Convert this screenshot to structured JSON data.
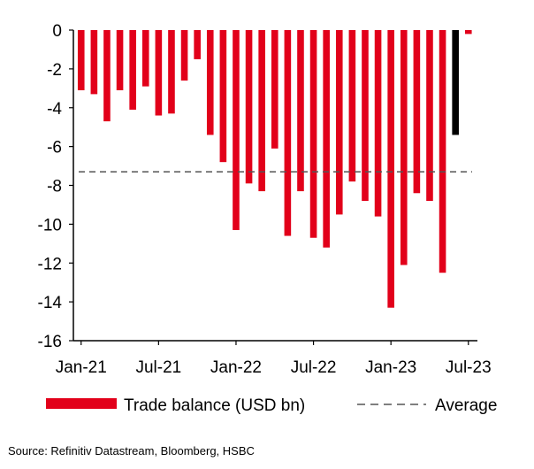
{
  "chart_data": {
    "type": "bar",
    "title": "",
    "xlabel": "",
    "ylabel": "",
    "ylim": [
      -16,
      0
    ],
    "yticks": [
      0,
      -2,
      -4,
      -6,
      -8,
      -10,
      -12,
      -14,
      -16
    ],
    "xtick_labels": [
      "Jan-21",
      "Jul-21",
      "Jan-22",
      "Jul-22",
      "Jan-23",
      "Jul-23"
    ],
    "categories": [
      "Jan-21",
      "Feb-21",
      "Mar-21",
      "Apr-21",
      "May-21",
      "Jun-21",
      "Jul-21",
      "Aug-21",
      "Sep-21",
      "Oct-21",
      "Nov-21",
      "Dec-21",
      "Jan-22",
      "Feb-22",
      "Mar-22",
      "Apr-22",
      "May-22",
      "Jun-22",
      "Jul-22",
      "Aug-22",
      "Sep-22",
      "Oct-22",
      "Nov-22",
      "Dec-22",
      "Jan-23",
      "Feb-23",
      "Mar-23",
      "Apr-23",
      "May-23",
      "Jun-23",
      "Jul-23"
    ],
    "series": [
      {
        "name": "Trade balance (USD bn)",
        "color": "#e2001a",
        "values": [
          -3.1,
          -3.3,
          -4.7,
          -3.1,
          -4.1,
          -2.9,
          -4.4,
          -4.3,
          -2.6,
          -1.5,
          -5.4,
          -6.8,
          -10.3,
          -7.9,
          -8.3,
          -6.1,
          -10.6,
          -8.3,
          -10.7,
          -11.2,
          -9.5,
          -7.8,
          -8.8,
          -9.6,
          -14.3,
          -12.1,
          -8.4,
          -8.8,
          -12.5,
          -5.4,
          -0.2
        ],
        "highlight_last_color": "#000000"
      }
    ],
    "average": {
      "name": "Average",
      "value": -7.3,
      "color": "#555555"
    },
    "legend": {
      "position": "bottom",
      "items": [
        {
          "label": "Trade balance (USD bn)",
          "style": "bar",
          "color": "#e2001a"
        },
        {
          "label": "Average",
          "style": "dashed",
          "color": "#555555"
        }
      ]
    }
  },
  "source": "Source: Refinitiv Datastream, Bloomberg, HSBC"
}
